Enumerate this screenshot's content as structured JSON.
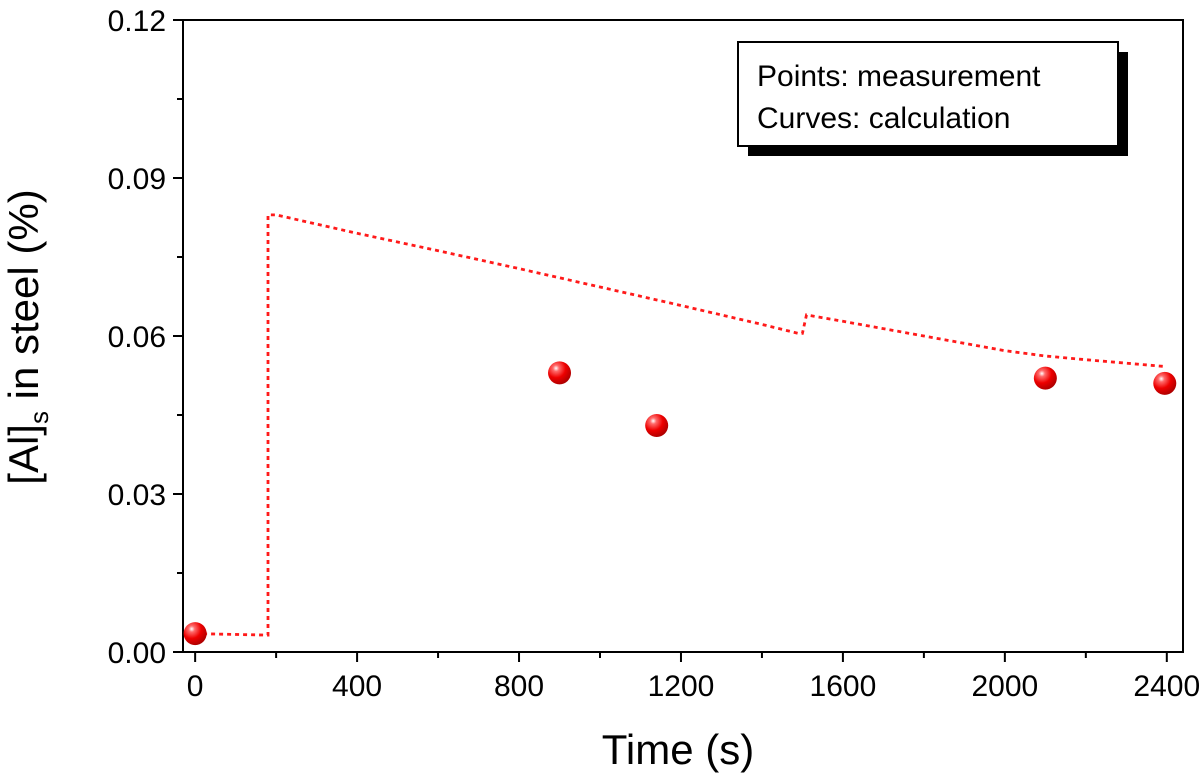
{
  "chart_data": {
    "type": "scatter",
    "xlabel": "Time (s)",
    "ylabel_parts": [
      "[Al]",
      "s",
      " in steel (%)"
    ],
    "xlim": [
      -30,
      2440
    ],
    "ylim": [
      0,
      0.12
    ],
    "xticks": [
      0,
      400,
      800,
      1200,
      1600,
      2000,
      2400
    ],
    "yticks": [
      0.0,
      0.03,
      0.06,
      0.09,
      0.12
    ],
    "xtick_labels": [
      "0",
      "400",
      "800",
      "1200",
      "1600",
      "2000",
      "2400"
    ],
    "ytick_labels": [
      "0.00",
      "0.03",
      "0.06",
      "0.09",
      "0.12"
    ],
    "legend_lines": [
      "Points: measurement",
      "Curves: calculation"
    ],
    "legend_position": "top-right",
    "grid": false,
    "series": [
      {
        "kind": "measurement",
        "style": "points",
        "color": "#ee0000",
        "x": [
          0,
          900,
          1140,
          2100,
          2395
        ],
        "y": [
          0.0035,
          0.053,
          0.043,
          0.052,
          0.051
        ]
      },
      {
        "kind": "calculation",
        "style": "dotted-line",
        "color": "#ff1a1a",
        "x": [
          0,
          180,
          180,
          200,
          400,
          600,
          800,
          1000,
          1200,
          1400,
          1490,
          1500,
          1510,
          1600,
          1800,
          2000,
          2100,
          2200,
          2395
        ],
        "y": [
          0.0035,
          0.0032,
          0.083,
          0.083,
          0.0795,
          0.0762,
          0.0728,
          0.0693,
          0.0658,
          0.0622,
          0.0605,
          0.0605,
          0.064,
          0.0628,
          0.06,
          0.0572,
          0.0562,
          0.0555,
          0.0542
        ]
      }
    ]
  }
}
